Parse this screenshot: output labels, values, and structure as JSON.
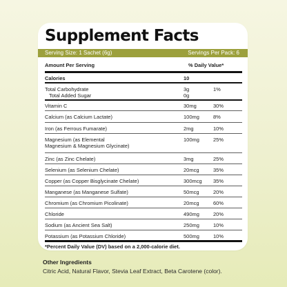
{
  "title": "Supplement Facts",
  "serving_size": "Serving Size: 1 Sachet (6g)",
  "servings_per_pack": "Servings Per Pack: 6",
  "header": {
    "amount": "Amount Per Serving",
    "dv": "% Daily Value*"
  },
  "calories": {
    "label": "Calories",
    "value": "10"
  },
  "carb": {
    "label": "Total Carbohydrate",
    "amount": "3g",
    "dv": "1%",
    "sub_label": "Total Added Sugar",
    "sub_amount": "0g"
  },
  "nutrients": [
    {
      "name": "Vitamin C",
      "amount": "30mg",
      "dv": "30%"
    },
    {
      "name": "Calcium (as Calcium Lactate)",
      "amount": "100mg",
      "dv": "8%"
    },
    {
      "name": "Iron (as Ferrous Fumarate)",
      "amount": "2mg",
      "dv": "10%"
    },
    {
      "name": "Magnesium (as Elemental",
      "name2": "Magnesium & Magnesium Glycinate)",
      "amount": "100mg",
      "dv": "25%"
    },
    {
      "name": "Zinc (as Zinc Chelate)",
      "amount": "3mg",
      "dv": "25%"
    },
    {
      "name": "Selenium (as Selenium Chelate)",
      "amount": "20mcg",
      "dv": "35%"
    },
    {
      "name": "Copper (as Copper Bisglycinate Chelate)",
      "amount": "300mcg",
      "dv": "35%"
    },
    {
      "name": "Manganese (as Manganese Sulfate)",
      "amount": "50mcg",
      "dv": "20%"
    },
    {
      "name": "Chromium (as Chromium Picolinate)",
      "amount": "20mcg",
      "dv": "60%"
    },
    {
      "name": "Chloride",
      "amount": "490mg",
      "dv": "20%"
    },
    {
      "name": "Sodium (as Ancient Sea Salt)",
      "amount": "250mg",
      "dv": "10%"
    },
    {
      "name": "Potassium (as Potassium Chloride)",
      "amount": "500mg",
      "dv": "10%"
    }
  ],
  "footnote": "*Percent Daily Value (DV) based on a 2,000-calorie diet.",
  "other_ingredients": {
    "heading": "Other Ingredients",
    "text": "Citric Acid, Natural Flavor, Stevia Leaf Extract, Beta Carotene (color)."
  }
}
